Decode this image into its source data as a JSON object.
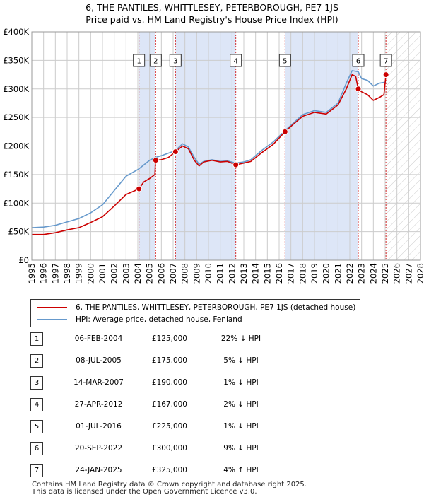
{
  "title": {
    "line1": "6, THE PANTILES, WHITTLESEY, PETERBOROUGH, PE7 1JS",
    "line2": "Price paid vs. HM Land Registry's House Price Index (HPI)"
  },
  "colors": {
    "price_line": "#cc0000",
    "hpi_line": "#6699cc",
    "shade": "#dde6f7",
    "marker": "#cc0000",
    "grid": "#cccccc"
  },
  "chart_data": {
    "type": "line",
    "x_range": [
      1995,
      2028
    ],
    "y_range": [
      0,
      400000
    ],
    "y_ticks": [
      {
        "value": 0,
        "label": "£0"
      },
      {
        "value": 50000,
        "label": "£50K"
      },
      {
        "value": 100000,
        "label": "£100K"
      },
      {
        "value": 150000,
        "label": "£150K"
      },
      {
        "value": 200000,
        "label": "£200K"
      },
      {
        "value": 250000,
        "label": "£250K"
      },
      {
        "value": 300000,
        "label": "£300K"
      },
      {
        "value": 350000,
        "label": "£350K"
      },
      {
        "value": 400000,
        "label": "£400K"
      }
    ],
    "x_ticks": [
      "1995",
      "1996",
      "1997",
      "1998",
      "1999",
      "2000",
      "2001",
      "2002",
      "2003",
      "2004",
      "2005",
      "2006",
      "2007",
      "2008",
      "2009",
      "2010",
      "2011",
      "2012",
      "2013",
      "2014",
      "2015",
      "2016",
      "2017",
      "2018",
      "2019",
      "2020",
      "2021",
      "2022",
      "2023",
      "2024",
      "2025",
      "2026",
      "2027",
      "2028"
    ],
    "grid": true,
    "shaded_ranges": [
      [
        2004.1,
        2005.5
      ],
      [
        2007.2,
        2012.32
      ],
      [
        2016.5,
        2022.72
      ]
    ],
    "forecast_start": 2025.07,
    "series": [
      {
        "name": "6, THE PANTILES, WHITTLESEY, PETERBOROUGH, PE7 1JS (detached house)",
        "color": "#cc0000",
        "points": [
          [
            1995.0,
            45000
          ],
          [
            1996.0,
            45000
          ],
          [
            1997.0,
            48000
          ],
          [
            1998.0,
            53000
          ],
          [
            1999.0,
            57000
          ],
          [
            2000.0,
            66000
          ],
          [
            2001.0,
            76000
          ],
          [
            2002.0,
            95000
          ],
          [
            2003.0,
            115000
          ],
          [
            2004.1,
            125000
          ],
          [
            2004.5,
            137000
          ],
          [
            2005.0,
            143000
          ],
          [
            2005.45,
            150000
          ],
          [
            2005.5,
            175000
          ],
          [
            2006.0,
            176000
          ],
          [
            2006.6,
            180000
          ],
          [
            2007.2,
            190000
          ],
          [
            2007.8,
            200000
          ],
          [
            2008.3,
            195000
          ],
          [
            2008.8,
            175000
          ],
          [
            2009.2,
            165000
          ],
          [
            2009.6,
            172000
          ],
          [
            2010.3,
            175000
          ],
          [
            2011.0,
            172000
          ],
          [
            2011.6,
            173000
          ],
          [
            2012.32,
            167000
          ],
          [
            2013.0,
            170000
          ],
          [
            2013.6,
            173000
          ],
          [
            2014.5,
            188000
          ],
          [
            2015.5,
            203000
          ],
          [
            2016.5,
            225000
          ],
          [
            2017.2,
            238000
          ],
          [
            2018.0,
            252000
          ],
          [
            2019.0,
            259000
          ],
          [
            2020.0,
            256000
          ],
          [
            2021.0,
            272000
          ],
          [
            2021.7,
            300000
          ],
          [
            2022.2,
            325000
          ],
          [
            2022.5,
            322000
          ],
          [
            2022.72,
            300000
          ],
          [
            2023.0,
            295000
          ],
          [
            2023.5,
            290000
          ],
          [
            2024.0,
            280000
          ],
          [
            2024.5,
            285000
          ],
          [
            2024.9,
            290000
          ],
          [
            2025.07,
            325000
          ]
        ]
      },
      {
        "name": "HPI: Average price, detached house, Fenland",
        "color": "#6699cc",
        "points": [
          [
            1995.0,
            57000
          ],
          [
            1996.0,
            58000
          ],
          [
            1997.0,
            61000
          ],
          [
            1998.0,
            67000
          ],
          [
            1999.0,
            73000
          ],
          [
            2000.0,
            83000
          ],
          [
            2001.0,
            97000
          ],
          [
            2002.0,
            122000
          ],
          [
            2003.0,
            147000
          ],
          [
            2004.1,
            160000
          ],
          [
            2005.0,
            175000
          ],
          [
            2005.5,
            180000
          ],
          [
            2006.0,
            183000
          ],
          [
            2007.2,
            192000
          ],
          [
            2007.8,
            204000
          ],
          [
            2008.3,
            198000
          ],
          [
            2008.8,
            180000
          ],
          [
            2009.2,
            168000
          ],
          [
            2009.6,
            173000
          ],
          [
            2010.3,
            176000
          ],
          [
            2011.0,
            173000
          ],
          [
            2011.6,
            174000
          ],
          [
            2012.32,
            170000
          ],
          [
            2013.0,
            172000
          ],
          [
            2013.6,
            176000
          ],
          [
            2014.5,
            192000
          ],
          [
            2015.5,
            207000
          ],
          [
            2016.5,
            227000
          ],
          [
            2017.2,
            240000
          ],
          [
            2018.0,
            255000
          ],
          [
            2019.0,
            262000
          ],
          [
            2020.0,
            259000
          ],
          [
            2021.0,
            275000
          ],
          [
            2021.7,
            310000
          ],
          [
            2022.2,
            332000
          ],
          [
            2022.72,
            330000
          ],
          [
            2023.0,
            318000
          ],
          [
            2023.5,
            315000
          ],
          [
            2024.0,
            305000
          ],
          [
            2024.5,
            310000
          ],
          [
            2025.07,
            312000
          ]
        ]
      }
    ],
    "sales_markers": [
      {
        "n": "1",
        "x": 2004.1,
        "y": 125000
      },
      {
        "n": "2",
        "x": 2005.52,
        "y": 175000
      },
      {
        "n": "3",
        "x": 2007.2,
        "y": 190000
      },
      {
        "n": "4",
        "x": 2012.32,
        "y": 167000
      },
      {
        "n": "5",
        "x": 2016.5,
        "y": 225000
      },
      {
        "n": "6",
        "x": 2022.72,
        "y": 300000
      },
      {
        "n": "7",
        "x": 2025.07,
        "y": 325000
      }
    ]
  },
  "legend": {
    "price_label": "6, THE PANTILES, WHITTLESEY, PETERBOROUGH, PE7 1JS (detached house)",
    "hpi_label": "HPI: Average price, detached house, Fenland"
  },
  "sales": [
    {
      "n": "1",
      "date": "06-FEB-2004",
      "price": "£125,000",
      "hpi": "22% ↓ HPI"
    },
    {
      "n": "2",
      "date": "08-JUL-2005",
      "price": "£175,000",
      "hpi": "5% ↓ HPI"
    },
    {
      "n": "3",
      "date": "14-MAR-2007",
      "price": "£190,000",
      "hpi": "1% ↓ HPI"
    },
    {
      "n": "4",
      "date": "27-APR-2012",
      "price": "£167,000",
      "hpi": "2% ↓ HPI"
    },
    {
      "n": "5",
      "date": "01-JUL-2016",
      "price": "£225,000",
      "hpi": "1% ↓ HPI"
    },
    {
      "n": "6",
      "date": "20-SEP-2022",
      "price": "£300,000",
      "hpi": "9% ↓ HPI"
    },
    {
      "n": "7",
      "date": "24-JAN-2025",
      "price": "£325,000",
      "hpi": "4% ↑ HPI"
    }
  ],
  "footer": {
    "line1": "Contains HM Land Registry data © Crown copyright and database right 2025.",
    "line2": "This data is licensed under the Open Government Licence v3.0."
  }
}
